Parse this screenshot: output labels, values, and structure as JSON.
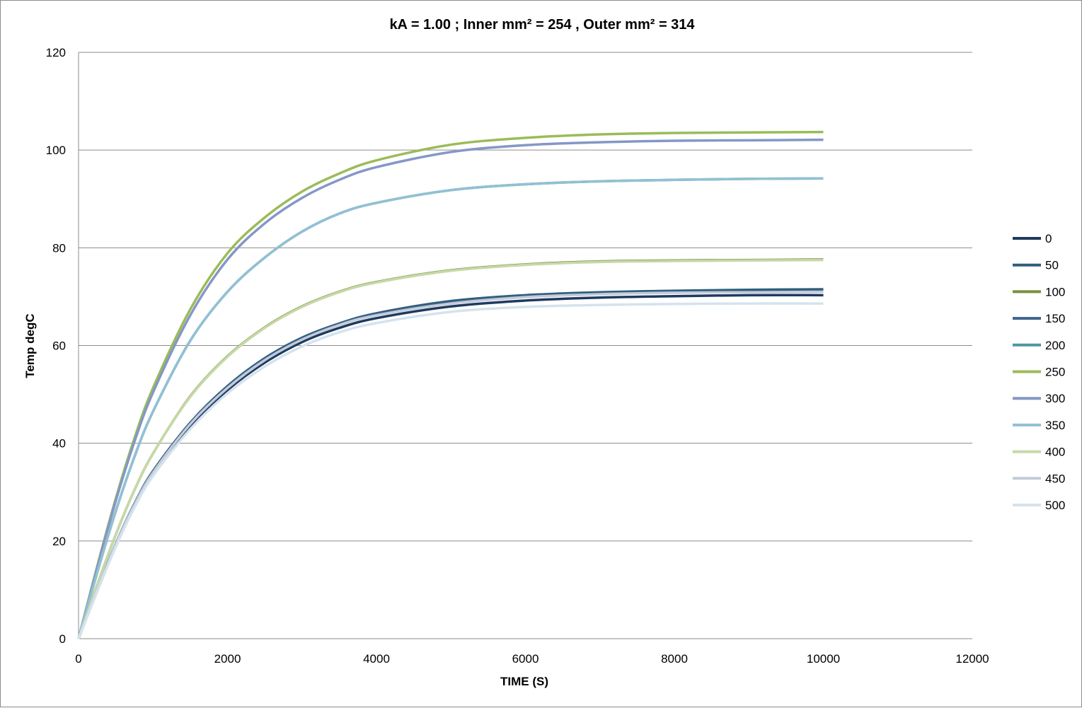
{
  "chart_data": {
    "type": "line",
    "title": "kA =  1.00 ; Inner  mm² =  254 , Outer  mm² = 314",
    "xlabel": "TIME (S)",
    "ylabel": "Temp degC",
    "xlim": [
      0,
      12000
    ],
    "ylim": [
      0,
      120
    ],
    "xticks": [
      0,
      2000,
      4000,
      6000,
      8000,
      10000,
      12000
    ],
    "yticks": [
      0,
      20,
      40,
      60,
      80,
      100,
      120
    ],
    "grid": "horizontal",
    "legend_position": "right",
    "x": [
      0,
      250,
      500,
      750,
      1000,
      1500,
      2000,
      2500,
      3000,
      3500,
      4000,
      5000,
      6000,
      7000,
      8000,
      9000,
      10000
    ],
    "series": [
      {
        "name": "0",
        "color": "#1f3a5f",
        "values": [
          0,
          9.8,
          19.1,
          27.2,
          33.8,
          43.6,
          50.9,
          56.5,
          60.7,
          63.6,
          65.6,
          68.0,
          69.2,
          69.8,
          70.1,
          70.3,
          70.3
        ]
      },
      {
        "name": "50",
        "color": "#2e5f7a",
        "values": [
          0,
          10.0,
          19.4,
          27.6,
          34.3,
          44.2,
          51.7,
          57.4,
          61.6,
          64.5,
          66.6,
          69.1,
          70.3,
          70.9,
          71.2,
          71.4,
          71.5
        ]
      },
      {
        "name": "100",
        "color": "#77923c",
        "values": [
          0,
          11.0,
          21.3,
          30.4,
          37.9,
          49.6,
          57.8,
          63.7,
          68.0,
          71.0,
          73.0,
          75.4,
          76.6,
          77.2,
          77.4,
          77.5,
          77.6
        ]
      },
      {
        "name": "150",
        "color": "#3e648e",
        "values": [
          0,
          9.9,
          19.3,
          27.4,
          34.1,
          44.0,
          51.5,
          57.2,
          61.4,
          64.3,
          66.4,
          68.8,
          70.0,
          70.6,
          70.9,
          71.0,
          71.1
        ]
      },
      {
        "name": "200",
        "color": "#4e95a4",
        "values": [
          0,
          13.5,
          26.1,
          37.2,
          46.5,
          61.0,
          71.0,
          78.0,
          83.3,
          87.0,
          89.2,
          91.8,
          93.0,
          93.6,
          93.9,
          94.1,
          94.2
        ]
      },
      {
        "name": "250",
        "color": "#9bbb59",
        "values": [
          0,
          14.8,
          28.7,
          41.0,
          51.3,
          67.4,
          78.9,
          86.2,
          91.5,
          95.2,
          97.9,
          101.1,
          102.5,
          103.2,
          103.5,
          103.6,
          103.7
        ]
      },
      {
        "name": "300",
        "color": "#8497c6",
        "values": [
          0,
          14.5,
          28.2,
          40.3,
          50.4,
          66.2,
          77.6,
          85.0,
          90.2,
          93.9,
          96.5,
          99.6,
          101.0,
          101.6,
          101.9,
          102.0,
          102.1
        ]
      },
      {
        "name": "350",
        "color": "#92c0d3",
        "values": [
          0,
          13.5,
          26.1,
          37.2,
          46.5,
          61.0,
          71.0,
          78.0,
          83.3,
          87.0,
          89.2,
          91.8,
          93.0,
          93.6,
          93.9,
          94.1,
          94.2
        ]
      },
      {
        "name": "400",
        "color": "#c7d8a8",
        "values": [
          0,
          11.0,
          21.3,
          30.4,
          37.9,
          49.5,
          57.7,
          63.6,
          67.9,
          70.9,
          72.9,
          75.3,
          76.5,
          77.1,
          77.3,
          77.4,
          77.5
        ]
      },
      {
        "name": "450",
        "color": "#c3cbd9",
        "values": [
          0,
          9.9,
          19.3,
          27.4,
          34.0,
          43.9,
          51.3,
          57.0,
          61.2,
          64.2,
          66.2,
          68.6,
          69.9,
          70.5,
          70.8,
          70.9,
          71.0
        ]
      },
      {
        "name": "500",
        "color": "#d4e3ee",
        "values": [
          0,
          9.6,
          18.8,
          26.8,
          33.3,
          42.9,
          50.2,
          55.7,
          59.8,
          62.7,
          64.6,
          66.9,
          67.9,
          68.3,
          68.5,
          68.6,
          68.6
        ]
      }
    ]
  }
}
